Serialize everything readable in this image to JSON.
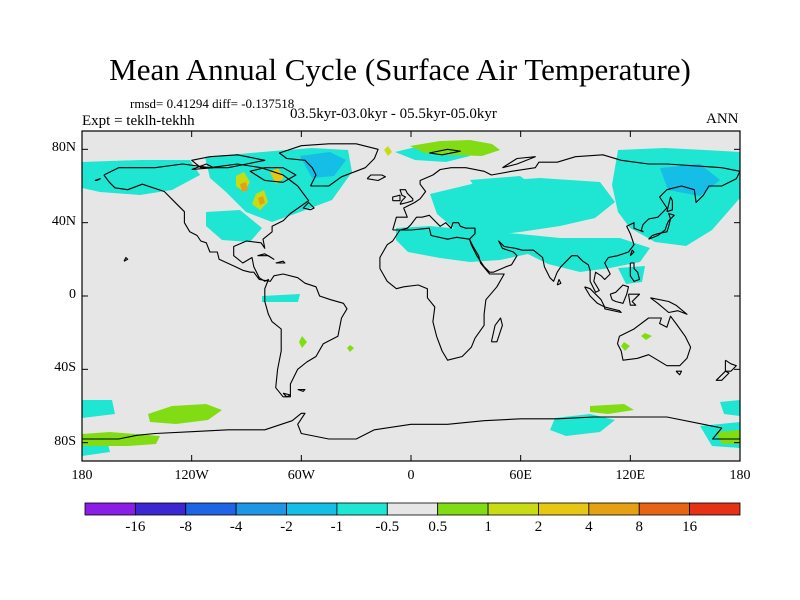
{
  "title": "Mean Annual Cycle (Surface Air Temperature)",
  "stats_line": "rmsd= 0.41294 diff= -0.137518",
  "experiment": "Expt = teklh-tekhh",
  "subtitle": "03.5kyr-03.0kyr - 05.5kyr-05.0kyr",
  "season": "ANN",
  "lat_ticks": [
    {
      "label": "80N",
      "value": 80
    },
    {
      "label": "40N",
      "value": 40
    },
    {
      "label": "0",
      "value": 0
    },
    {
      "label": "40S",
      "value": -40
    },
    {
      "label": "80S",
      "value": -80
    }
  ],
  "lon_ticks": [
    {
      "label": "180",
      "value": -180
    },
    {
      "label": "120W",
      "value": -120
    },
    {
      "label": "60W",
      "value": -60
    },
    {
      "label": "0",
      "value": 0
    },
    {
      "label": "60E",
      "value": 60
    },
    {
      "label": "120E",
      "value": 120
    },
    {
      "label": "180",
      "value": 180
    }
  ],
  "colorbar": {
    "colors": [
      "#8a1ee6",
      "#3c28d2",
      "#1e64e6",
      "#1e96e6",
      "#14bee6",
      "#1ee6d2",
      "#e6e6e6",
      "#82dc14",
      "#c8dc14",
      "#e6c814",
      "#e6a014",
      "#e66414",
      "#e63214"
    ],
    "labels": [
      "-16",
      "-8",
      "-4",
      "-2",
      "-1",
      "-0.5",
      "0.5",
      "1",
      "2",
      "4",
      "8",
      "16"
    ]
  },
  "map_colors": {
    "background": "#e6e6e6",
    "cool_light": "#1ee6d2",
    "cool_mid": "#14bee6",
    "cool_strong": "#1e96e6",
    "warm_light": "#82dc14",
    "warm_mid": "#c8dc14",
    "warm_strong": "#e6c814",
    "warm_hot": "#e6a014",
    "coast": "#000000"
  }
}
